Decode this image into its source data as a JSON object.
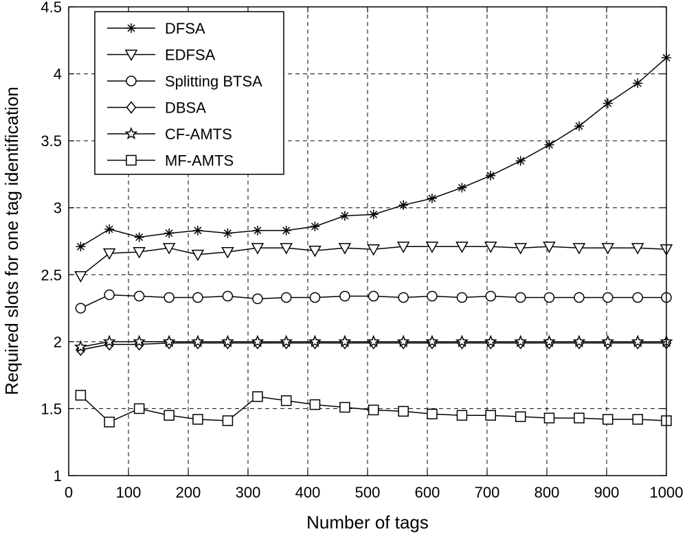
{
  "chart_data": {
    "type": "line",
    "title": "",
    "xlabel": "Number of tags",
    "ylabel": "Required slots for one tag identification",
    "xlim": [
      0,
      1000
    ],
    "ylim": [
      1,
      4.5
    ],
    "xticks": [
      0,
      100,
      200,
      300,
      400,
      500,
      600,
      700,
      800,
      900,
      1000
    ],
    "yticks": [
      1,
      1.5,
      2,
      2.5,
      3,
      3.5,
      4,
      4.5
    ],
    "grid": true,
    "grid_style": "dashed",
    "legend_position": "top-left",
    "x": [
      20,
      70,
      120,
      170,
      220,
      270,
      320,
      370,
      420,
      470,
      520,
      570,
      620,
      670,
      720,
      770,
      820,
      870,
      920,
      970,
      1000
    ],
    "series": [
      {
        "name": "DFSA",
        "marker": "asterisk",
        "x": [
          20,
          68,
          118,
          168,
          216,
          266,
          316,
          364,
          412,
          462,
          510,
          560,
          608,
          658,
          706,
          756,
          804,
          854,
          902,
          952,
          1000
        ],
        "values": [
          2.71,
          2.84,
          2.78,
          2.81,
          2.83,
          2.81,
          2.83,
          2.83,
          2.86,
          2.94,
          2.95,
          3.02,
          3.07,
          3.15,
          3.24,
          3.35,
          3.47,
          3.61,
          3.78,
          3.93,
          4.12
        ]
      },
      {
        "name": "EDFSA",
        "marker": "triangle-down",
        "x": [
          20,
          68,
          118,
          168,
          216,
          266,
          316,
          364,
          412,
          462,
          510,
          560,
          608,
          658,
          706,
          756,
          804,
          854,
          902,
          952,
          1000
        ],
        "values": [
          2.49,
          2.66,
          2.67,
          2.7,
          2.65,
          2.67,
          2.7,
          2.7,
          2.68,
          2.7,
          2.69,
          2.71,
          2.71,
          2.71,
          2.71,
          2.7,
          2.71,
          2.7,
          2.7,
          2.7,
          2.69
        ]
      },
      {
        "name": "Splitting BTSA",
        "marker": "circle",
        "x": [
          20,
          68,
          118,
          168,
          216,
          266,
          316,
          364,
          412,
          462,
          510,
          560,
          608,
          658,
          706,
          756,
          804,
          854,
          902,
          952,
          1000
        ],
        "values": [
          2.25,
          2.35,
          2.34,
          2.33,
          2.33,
          2.34,
          2.32,
          2.33,
          2.33,
          2.34,
          2.34,
          2.33,
          2.34,
          2.33,
          2.34,
          2.33,
          2.33,
          2.33,
          2.33,
          2.33,
          2.33
        ]
      },
      {
        "name": "DBSA",
        "marker": "diamond",
        "x": [
          20,
          68,
          118,
          168,
          216,
          266,
          316,
          364,
          412,
          462,
          510,
          560,
          608,
          658,
          706,
          756,
          804,
          854,
          902,
          952,
          1000
        ],
        "values": [
          1.94,
          1.98,
          1.98,
          1.99,
          1.99,
          1.99,
          1.99,
          1.99,
          1.99,
          1.99,
          1.99,
          1.99,
          1.99,
          1.99,
          1.99,
          1.99,
          1.99,
          1.99,
          1.99,
          1.99,
          1.99
        ]
      },
      {
        "name": "CF-AMTS",
        "marker": "star",
        "x": [
          20,
          68,
          118,
          168,
          216,
          266,
          316,
          364,
          412,
          462,
          510,
          560,
          608,
          658,
          706,
          756,
          804,
          854,
          902,
          952,
          1000
        ],
        "values": [
          1.96,
          2.0,
          2.0,
          2.0,
          2.0,
          2.0,
          2.0,
          2.0,
          2.0,
          2.0,
          2.0,
          2.0,
          2.0,
          2.0,
          2.0,
          2.0,
          2.0,
          2.0,
          2.0,
          2.0,
          2.0
        ]
      },
      {
        "name": "MF-AMTS",
        "marker": "square",
        "x": [
          20,
          68,
          118,
          168,
          216,
          266,
          316,
          364,
          412,
          462,
          510,
          560,
          608,
          658,
          706,
          756,
          804,
          854,
          902,
          952,
          1000
        ],
        "values": [
          1.6,
          1.4,
          1.5,
          1.45,
          1.42,
          1.41,
          1.59,
          1.56,
          1.53,
          1.51,
          1.49,
          1.48,
          1.46,
          1.45,
          1.45,
          1.44,
          1.43,
          1.43,
          1.42,
          1.42,
          1.41
        ]
      }
    ]
  }
}
